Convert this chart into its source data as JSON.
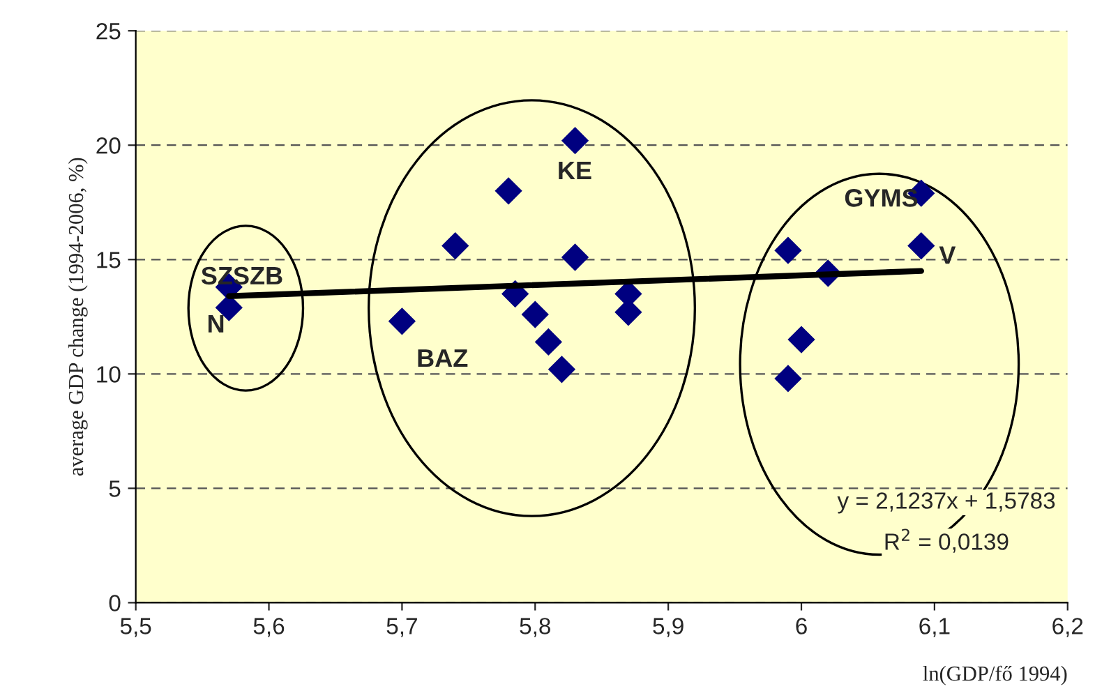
{
  "chart_data": {
    "type": "scatter",
    "xlabel": "ln(GDP/fő 1994)",
    "ylabel": "average GDP change (1994-2006, %)",
    "xlim": [
      5.5,
      6.2
    ],
    "ylim": [
      0,
      25
    ],
    "xticks": [
      {
        "value": 5.5,
        "label": "5,5"
      },
      {
        "value": 5.6,
        "label": "5,6"
      },
      {
        "value": 5.7,
        "label": "5,7"
      },
      {
        "value": 5.8,
        "label": "5,8"
      },
      {
        "value": 5.9,
        "label": "5,9"
      },
      {
        "value": 6,
        "label": "6"
      },
      {
        "value": 6.1,
        "label": "6,1"
      },
      {
        "value": 6.2,
        "label": "6,2"
      }
    ],
    "yticks": [
      0,
      5,
      10,
      15,
      20,
      25
    ],
    "grid": "y",
    "marker": "diamond",
    "series": [
      {
        "color": "#000080",
        "x": [
          5.57,
          5.57,
          5.7,
          5.74,
          5.78,
          5.785,
          5.8,
          5.81,
          5.82,
          5.83,
          5.83,
          5.87,
          5.87,
          5.99,
          6.0,
          5.99,
          6.02,
          6.09,
          6.09
        ],
        "values": [
          13.8,
          12.9,
          12.3,
          15.6,
          18.0,
          13.5,
          12.6,
          11.4,
          10.2,
          15.1,
          20.2,
          13.5,
          12.7,
          15.4,
          11.5,
          9.8,
          14.4,
          15.6,
          17.9
        ]
      },
      {
        "type": "line",
        "marker": "none",
        "color": "#000000",
        "x": [
          5.57,
          6.09
        ],
        "values": [
          13.4,
          14.5
        ]
      }
    ],
    "annotations": [
      "SZSZB",
      "N",
      "BAZ",
      "KE",
      "GYMS",
      "V",
      "y = 2,1237x + 1,5783",
      "R$^{2}$ = 0,0139"
    ]
  }
}
